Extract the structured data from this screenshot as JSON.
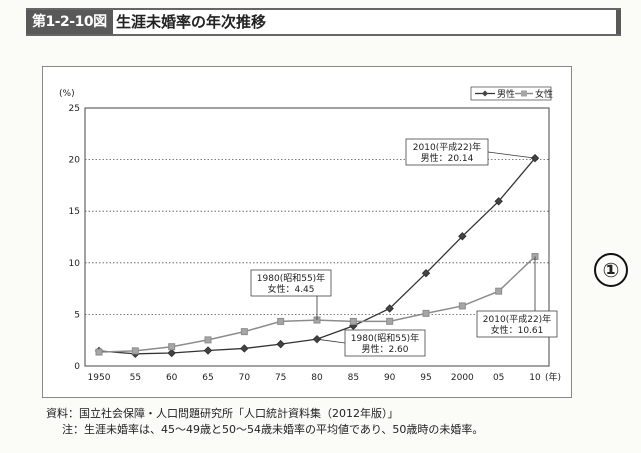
{
  "header": {
    "figure_label": "第1-2-10図",
    "title": "生涯未婚率の年次推移"
  },
  "circle_mark": "①",
  "chart_data": {
    "type": "line",
    "ylabel": "(%)",
    "xlabel": "(年)",
    "ylim": [
      0,
      25
    ],
    "yticks": [
      0,
      5,
      10,
      15,
      20,
      25
    ],
    "x": [
      1950,
      1955,
      1960,
      1965,
      1970,
      1975,
      1980,
      1985,
      1990,
      1995,
      2000,
      2005,
      2010
    ],
    "xtick_labels": [
      "1950",
      "55",
      "60",
      "65",
      "70",
      "75",
      "80",
      "85",
      "90",
      "95",
      "2000",
      "05",
      "10"
    ],
    "grid": "horizontal dotted",
    "legend": "top-right",
    "series": [
      {
        "name": "男性",
        "marker": "diamond",
        "color": "#333333",
        "values": [
          1.46,
          1.18,
          1.26,
          1.5,
          1.7,
          2.12,
          2.6,
          3.89,
          5.57,
          8.99,
          12.57,
          15.96,
          20.14
        ]
      },
      {
        "name": "女性",
        "marker": "square",
        "color": "#8c8c8c",
        "values": [
          1.35,
          1.47,
          1.87,
          2.53,
          3.33,
          4.32,
          4.45,
          4.32,
          4.33,
          5.1,
          5.82,
          7.25,
          10.61
        ]
      }
    ],
    "annotations": [
      {
        "lines": [
          "2010(平成22)年",
          "男性：20.14"
        ]
      },
      {
        "lines": [
          "1980(昭和55)年",
          "女性：4.45"
        ]
      },
      {
        "lines": [
          "1980(昭和55)年",
          "男性：2.60"
        ]
      },
      {
        "lines": [
          "2010(平成22)年",
          "女性：10.61"
        ]
      }
    ]
  },
  "footer": {
    "source": "資料：国立社会保障・人口問題研究所「人口統計資料集（2012年版）」",
    "note": "注：生涯未婚率は、45～49歳と50～54歳未婚率の平均値であり、50歳時の未婚率。"
  }
}
